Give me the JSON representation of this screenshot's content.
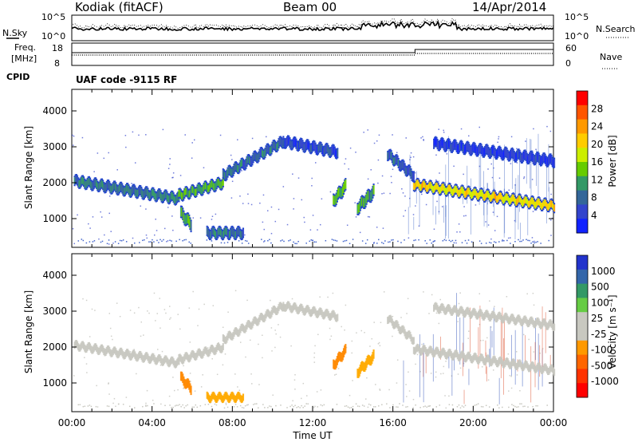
{
  "header": {
    "station": "Kodiak (fitACF)",
    "beam": "Beam 00",
    "date": "14/Apr/2014"
  },
  "noise_panel": {
    "left_label": "N.Sky",
    "right_label": "N.Search",
    "left_ticks": [
      "10^5",
      "10^0"
    ],
    "right_ticks": [
      "10^5",
      "10^0"
    ]
  },
  "freq_panel": {
    "left_label_1": "Freq.",
    "left_label_2": "[MHz]",
    "left_ticks": [
      "18",
      "8"
    ],
    "right_label": "Nave",
    "right_ticks": [
      "60",
      "0"
    ],
    "step_time_hours": 17.1
  },
  "cpid": {
    "label": "CPID",
    "program": "UAF code -9115 RF"
  },
  "chart_data": [
    {
      "type": "heatmap",
      "name_panel": "power",
      "ylabel": "Slant Range [km]",
      "xlabel": "Time UT",
      "x_unit": "hours UT",
      "xlim": [
        0,
        24
      ],
      "ylim": [
        200,
        4600
      ],
      "y_ticks": [
        1000,
        2000,
        3000,
        4000
      ],
      "x_tick_labels": [
        "00:00",
        "04:00",
        "08:00",
        "12:00",
        "16:00",
        "20:00",
        "00:00"
      ],
      "colorbar": {
        "label": "Power [dB]",
        "ticks": [
          "28",
          "24",
          "20",
          "16",
          "12",
          "8",
          "4"
        ],
        "colors": [
          "#ff0000",
          "#ff5500",
          "#ff9900",
          "#ffcc00",
          "#ccee00",
          "#66cc00",
          "#339966",
          "#336699",
          "#3344cc",
          "#1122ff"
        ]
      },
      "features": [
        {
          "t0": 0.1,
          "t1": 5.3,
          "r0": 2050,
          "r1": 1550,
          "level": 10
        },
        {
          "t0": 5.3,
          "t1": 7.5,
          "r0": 1650,
          "r1": 2000,
          "level": 13
        },
        {
          "t0": 7.5,
          "t1": 10.5,
          "r0": 2200,
          "r1": 3150,
          "level": 9
        },
        {
          "t0": 10.5,
          "t1": 13.2,
          "r0": 3150,
          "r1": 2850,
          "level": 6
        },
        {
          "t0": 17.0,
          "t1": 24.0,
          "r0": 1950,
          "r1": 1350,
          "level": 20
        },
        {
          "t0": 15.7,
          "t1": 17.0,
          "r0": 2800,
          "r1": 2200,
          "level": 8
        },
        {
          "t0": 18.0,
          "t1": 24.0,
          "r0": 3100,
          "r1": 2600,
          "level": 5
        },
        {
          "t0": 5.4,
          "t1": 5.9,
          "r0": 1150,
          "r1": 850,
          "level": 12
        },
        {
          "t0": 6.7,
          "t1": 8.5,
          "r0": 600,
          "r1": 600,
          "level": 9
        },
        {
          "t0": 13.0,
          "t1": 13.6,
          "r0": 1500,
          "r1": 1900,
          "level": 14
        },
        {
          "t0": 14.2,
          "t1": 15.0,
          "r0": 1300,
          "r1": 1750,
          "level": 12
        }
      ]
    },
    {
      "type": "heatmap",
      "name_panel": "velocity",
      "ylabel": "Slant Range [km]",
      "xlabel": "Time UT",
      "x_unit": "hours UT",
      "xlim": [
        0,
        24
      ],
      "ylim": [
        200,
        4600
      ],
      "y_ticks": [
        1000,
        2000,
        3000,
        4000
      ],
      "x_tick_labels": [
        "00:00",
        "04:00",
        "08:00",
        "12:00",
        "16:00",
        "20:00",
        "00:00"
      ],
      "colorbar": {
        "label": "Velocity [m s⁻¹]",
        "ticks": [
          "1000",
          "500",
          "100",
          "25",
          "-25",
          "-100",
          "-500",
          "-1000"
        ],
        "colors": [
          "#2233cc",
          "#3366aa",
          "#339966",
          "#66cc44",
          "#c8c8c0",
          "#c8c8c0",
          "#ff9900",
          "#ff6600",
          "#ff3300",
          "#ff0000"
        ]
      },
      "features": [
        {
          "t0": 0.1,
          "t1": 5.3,
          "r0": 2050,
          "r1": 1550,
          "level": 0
        },
        {
          "t0": 5.3,
          "t1": 7.5,
          "r0": 1650,
          "r1": 2000,
          "level": 0
        },
        {
          "t0": 7.5,
          "t1": 10.5,
          "r0": 2200,
          "r1": 3150,
          "level": 0
        },
        {
          "t0": 10.5,
          "t1": 13.2,
          "r0": 3150,
          "r1": 2850,
          "level": 0
        },
        {
          "t0": 17.0,
          "t1": 24.0,
          "r0": 1950,
          "r1": 1350,
          "level": 0
        },
        {
          "t0": 15.7,
          "t1": 17.0,
          "r0": 2800,
          "r1": 2200,
          "level": 0
        },
        {
          "t0": 18.0,
          "t1": 24.0,
          "r0": 3100,
          "r1": 2600,
          "level": 0
        },
        {
          "t0": 5.4,
          "t1": 5.9,
          "r0": 1150,
          "r1": 850,
          "level": -500
        },
        {
          "t0": 6.7,
          "t1": 8.5,
          "r0": 600,
          "r1": 600,
          "level": -300
        },
        {
          "t0": 13.0,
          "t1": 13.6,
          "r0": 1500,
          "r1": 1900,
          "level": -500
        },
        {
          "t0": 14.2,
          "t1": 15.0,
          "r0": 1300,
          "r1": 1750,
          "level": -400
        }
      ]
    }
  ],
  "axis": {
    "xlabel": "Time UT"
  }
}
